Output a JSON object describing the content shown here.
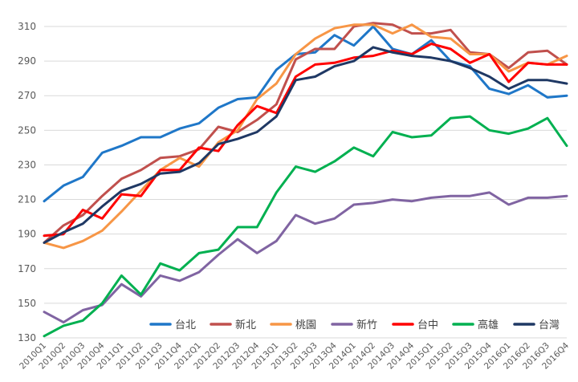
{
  "chart_data": {
    "type": "line",
    "title": "",
    "xlabel": "",
    "ylabel": "",
    "ylim": [
      130,
      310
    ],
    "yticks": [
      130,
      150,
      170,
      190,
      210,
      230,
      250,
      270,
      290,
      310
    ],
    "grid": "horizontal",
    "legend_position": "bottom-right",
    "categories": [
      "2010Q1",
      "2010Q2",
      "2010Q3",
      "2010Q4",
      "2011Q1",
      "2011Q2",
      "2011Q3",
      "2011Q4",
      "2012Q1",
      "2012Q2",
      "2012Q3",
      "2012Q4",
      "2013Q1",
      "2013Q2",
      "2013Q3",
      "2013Q4",
      "2014Q1",
      "2014Q2",
      "2014Q3",
      "2014Q4",
      "2015Q1",
      "2015Q2",
      "2015Q3",
      "2015Q4",
      "2016Q1",
      "2016Q2",
      "2016Q3",
      "2016Q4"
    ],
    "series": [
      {
        "name": "台北",
        "color": "#1f77c8",
        "values": [
          209,
          218,
          223,
          237,
          241,
          246,
          246,
          251,
          254,
          263,
          268,
          269,
          285,
          294,
          295,
          305,
          299,
          310,
          297,
          294,
          302,
          290,
          287,
          274,
          271,
          276,
          269,
          270
        ]
      },
      {
        "name": "新北",
        "color": "#c0504d",
        "values": [
          185,
          195,
          201,
          212,
          222,
          227,
          234,
          235,
          239,
          252,
          249,
          256,
          265,
          291,
          297,
          297,
          310,
          312,
          311,
          306,
          306,
          308,
          295,
          294,
          286,
          295,
          296,
          288
        ]
      },
      {
        "name": "桃園",
        "color": "#f79646",
        "values": [
          185,
          182,
          186,
          192,
          203,
          215,
          227,
          234,
          229,
          243,
          250,
          268,
          277,
          294,
          303,
          309,
          311,
          311,
          306,
          311,
          304,
          303,
          294,
          294,
          284,
          289,
          288,
          293
        ]
      },
      {
        "name": "新竹",
        "color": "#8064a2",
        "values": [
          145,
          139,
          146,
          149,
          161,
          154,
          166,
          163,
          168,
          178,
          187,
          179,
          186,
          201,
          196,
          199,
          207,
          208,
          210,
          209,
          211,
          212,
          212,
          214,
          207,
          211,
          211,
          212
        ]
      },
      {
        "name": "台中",
        "color": "#ff0000",
        "values": [
          189,
          190,
          204,
          199,
          213,
          212,
          227,
          227,
          240,
          238,
          253,
          264,
          260,
          281,
          288,
          289,
          292,
          293,
          296,
          294,
          300,
          297,
          289,
          294,
          278,
          289,
          288,
          288
        ]
      },
      {
        "name": "高雄",
        "color": "#00b050",
        "values": [
          131,
          137,
          140,
          150,
          166,
          155,
          173,
          169,
          179,
          181,
          194,
          194,
          214,
          229,
          226,
          232,
          240,
          235,
          249,
          246,
          247,
          257,
          258,
          250,
          248,
          251,
          257,
          241
        ]
      },
      {
        "name": "台灣",
        "color": "#1f3864",
        "values": [
          185,
          191,
          196,
          206,
          215,
          219,
          225,
          226,
          231,
          242,
          245,
          249,
          258,
          279,
          281,
          287,
          290,
          298,
          295,
          293,
          292,
          290,
          286,
          281,
          274,
          279,
          279,
          277
        ]
      }
    ]
  }
}
